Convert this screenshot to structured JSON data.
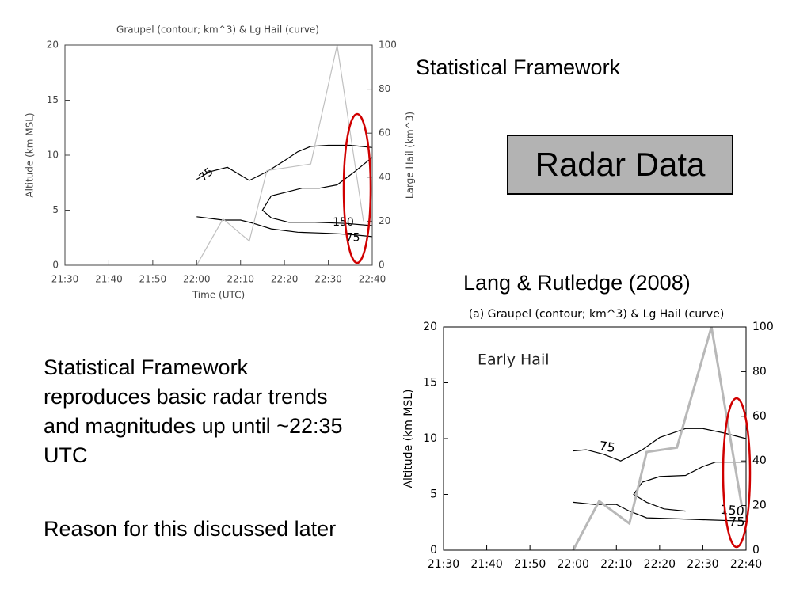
{
  "slide": {
    "heading": "Statistical Framework",
    "box_label": "Radar Data",
    "citation": "Lang & Rutledge (2008)",
    "body": [
      "Statistical Framework reproduces basic radar trends and magnitudes up until ~22:35 UTC",
      "Reason for this discussed later"
    ]
  },
  "chart_data": [
    {
      "type": "line",
      "title": "Graupel (contour; km^3) & Lg Hail (curve)",
      "y_label": "Altitude (km MSL)",
      "y2_label": "Large Hail (km^3)",
      "x_label": "Time (UTC)",
      "xlim": [
        1290,
        1360
      ],
      "xticks": [
        {
          "value": 1290,
          "label": "21:30"
        },
        {
          "value": 1300,
          "label": "21:40"
        },
        {
          "value": 1310,
          "label": "21:50"
        },
        {
          "value": 1320,
          "label": "22:00"
        },
        {
          "value": 1330,
          "label": "22:10"
        },
        {
          "value": 1340,
          "label": "22:20"
        },
        {
          "value": 1350,
          "label": "22:30"
        },
        {
          "value": 1360,
          "label": "22:40"
        }
      ],
      "ylim": [
        0,
        20
      ],
      "yticks": [
        0,
        5,
        10,
        15,
        20
      ],
      "y2lim": [
        0,
        100
      ],
      "y2ticks": [
        0,
        20,
        40,
        60,
        80,
        100
      ],
      "series": [
        {
          "color": "#c0c0c0",
          "axis": "y2",
          "x": [
            1320,
            1326,
            1332,
            1336,
            1346,
            1352,
            1358
          ],
          "values": [
            0,
            21,
            11,
            43,
            46,
            100,
            20
          ]
        },
        {
          "name": "75",
          "color": "#000000",
          "x": [
            1320,
            1323,
            1327,
            1332,
            1336,
            1340,
            1343,
            1346,
            1350,
            1355,
            1360
          ],
          "values": [
            7.8,
            8.5,
            8.9,
            7.7,
            8.5,
            9.5,
            10.3,
            10.8,
            10.9,
            10.9,
            10.7
          ]
        },
        {
          "name": "150",
          "color": "#000000",
          "x": [
            1360,
            1356,
            1352,
            1348,
            1344,
            1340,
            1337,
            1335,
            1337,
            1341,
            1347,
            1354,
            1360
          ],
          "values": [
            9.8,
            8.5,
            7.3,
            7.0,
            7.0,
            6.6,
            6.3,
            5.0,
            4.3,
            3.9,
            3.9,
            3.8,
            3.6
          ]
        },
        {
          "name": "75",
          "color": "#000000",
          "x": [
            1320,
            1326,
            1330,
            1333,
            1337,
            1343,
            1350,
            1355,
            1360
          ],
          "values": [
            4.4,
            4.1,
            4.1,
            3.8,
            3.3,
            3.0,
            2.9,
            2.8,
            2.6
          ]
        }
      ]
    },
    {
      "type": "line",
      "title": "(a) Graupel (contour; km^3) & Lg Hail (curve)",
      "y_label": "Altitude (km MSL)",
      "annotation": "Early Hail",
      "xlim": [
        1290,
        1360
      ],
      "xticks": [
        {
          "value": 1290,
          "label": "21:30"
        },
        {
          "value": 1300,
          "label": "21:40"
        },
        {
          "value": 1310,
          "label": "21:50"
        },
        {
          "value": 1320,
          "label": "22:00"
        },
        {
          "value": 1330,
          "label": "22:10"
        },
        {
          "value": 1340,
          "label": "22:20"
        },
        {
          "value": 1350,
          "label": "22:30"
        },
        {
          "value": 1360,
          "label": "22:40"
        }
      ],
      "ylim": [
        0,
        20
      ],
      "yticks": [
        0,
        5,
        10,
        15,
        20
      ],
      "y2lim": [
        0,
        100
      ],
      "y2ticks": [
        0,
        20,
        40,
        60,
        80,
        100
      ],
      "series": [
        {
          "color": "#b8b8b8",
          "axis": "y2",
          "x": [
            1320,
            1326,
            1333,
            1337,
            1344,
            1352,
            1359
          ],
          "values": [
            0,
            22,
            12,
            44,
            46,
            100,
            20
          ]
        },
        {
          "name": "75",
          "color": "#000000",
          "x": [
            1320,
            1323,
            1327,
            1331,
            1336,
            1340,
            1346,
            1350,
            1355,
            1360
          ],
          "values": [
            8.9,
            9.0,
            8.6,
            8.0,
            9.0,
            10.1,
            10.9,
            10.9,
            10.5,
            10.0
          ]
        },
        {
          "name": "150",
          "color": "#000000",
          "x": [
            1360,
            1353,
            1350,
            1346,
            1340,
            1336,
            1334,
            1337,
            1341,
            1346
          ],
          "values": [
            7.9,
            7.9,
            7.5,
            6.7,
            6.6,
            6.1,
            5.0,
            4.3,
            3.7,
            3.5
          ]
        },
        {
          "name": "75",
          "color": "#000000",
          "x": [
            1320,
            1325,
            1330,
            1333,
            1337,
            1345,
            1352,
            1360
          ],
          "values": [
            4.3,
            4.1,
            4.1,
            3.5,
            2.9,
            2.8,
            2.7,
            2.6
          ]
        }
      ]
    }
  ]
}
